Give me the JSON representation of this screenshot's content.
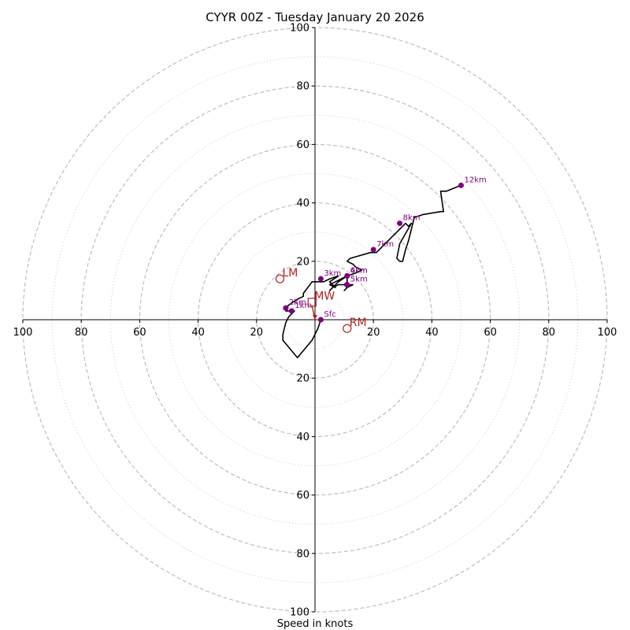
{
  "chart_data": {
    "type": "hodograph",
    "title": "CYYR 00Z - Tuesday January 20 2026",
    "xlabel": "Speed in knots",
    "range": [
      -100,
      100
    ],
    "rings_major": [
      20,
      40,
      60,
      80,
      100
    ],
    "rings_minor": [
      10,
      30,
      50,
      70,
      90
    ],
    "x_tick_labels": [
      "100",
      "80",
      "60",
      "40",
      "20",
      "20",
      "40",
      "60",
      "80",
      "100"
    ],
    "y_tick_labels": [
      "100",
      "80",
      "60",
      "40",
      "20",
      "20",
      "40",
      "60",
      "80",
      "100"
    ],
    "trace": {
      "color": "#000000",
      "points": [
        [
          2,
          0
        ],
        [
          1,
          -3
        ],
        [
          -1,
          -7
        ],
        [
          -6,
          -13
        ],
        [
          -11,
          -7
        ],
        [
          -11,
          -5
        ],
        [
          -10,
          -1
        ],
        [
          -9,
          1
        ],
        [
          -7,
          3
        ],
        [
          -10,
          3
        ],
        [
          -10,
          4
        ],
        [
          -9,
          5
        ],
        [
          -6,
          7
        ],
        [
          -4,
          8
        ],
        [
          -4,
          9
        ],
        [
          -1,
          13
        ],
        [
          1,
          13
        ],
        [
          3,
          13
        ],
        [
          5,
          14
        ],
        [
          8,
          15
        ],
        [
          5,
          13
        ],
        [
          7,
          11
        ],
        [
          5,
          12
        ],
        [
          7,
          13
        ],
        [
          9,
          14
        ],
        [
          11,
          15
        ],
        [
          11,
          14
        ],
        [
          11,
          13
        ],
        [
          10,
          12
        ],
        [
          13,
          12
        ],
        [
          11,
          11
        ],
        [
          10,
          10
        ],
        [
          11,
          11
        ],
        [
          10,
          12
        ],
        [
          8,
          12
        ],
        [
          6,
          11
        ],
        [
          5,
          10
        ],
        [
          8,
          13
        ],
        [
          11,
          15
        ],
        [
          14,
          16
        ],
        [
          16,
          17
        ],
        [
          14,
          18
        ],
        [
          13,
          19
        ],
        [
          11,
          20
        ],
        [
          12,
          21
        ],
        [
          19,
          23
        ],
        [
          21,
          23
        ],
        [
          23,
          25
        ],
        [
          26,
          28
        ],
        [
          28,
          30
        ],
        [
          31,
          33
        ],
        [
          32,
          32
        ],
        [
          33,
          33
        ],
        [
          29,
          26
        ],
        [
          28,
          21
        ],
        [
          29,
          20
        ],
        [
          30,
          20
        ],
        [
          31,
          24
        ],
        [
          32,
          27
        ],
        [
          34,
          35
        ],
        [
          37,
          36
        ],
        [
          43,
          37
        ],
        [
          44,
          37
        ],
        [
          43,
          44
        ],
        [
          45,
          44
        ],
        [
          50,
          46
        ]
      ]
    },
    "height_markers": {
      "color": "#800080",
      "points": [
        {
          "label": "Sfc",
          "u": 2,
          "v": 0
        },
        {
          "label": "1km",
          "u": -8,
          "v": 3
        },
        {
          "label": "2km",
          "u": -10,
          "v": 4
        },
        {
          "label": "3km",
          "u": 2,
          "v": 14
        },
        {
          "label": "4km",
          "u": 11,
          "v": 15
        },
        {
          "label": "5km",
          "u": 11,
          "v": 12
        },
        {
          "label": "6km",
          "u": 11,
          "v": 15
        },
        {
          "label": "7km",
          "u": 20,
          "v": 24
        },
        {
          "label": "8km",
          "u": 29,
          "v": 33
        },
        {
          "label": "12km",
          "u": 50,
          "v": 46
        }
      ]
    },
    "storm_motion": {
      "color": "#b22222",
      "points": [
        {
          "label": "LM",
          "u": -12,
          "v": 14,
          "shape": "circle"
        },
        {
          "label": "MW",
          "u": -1,
          "v": 6,
          "shape": "square"
        },
        {
          "label": "RM",
          "u": 11,
          "v": -3,
          "shape": "circle"
        }
      ],
      "mean_wind_arrow": {
        "u": 0,
        "v": 0
      }
    }
  }
}
